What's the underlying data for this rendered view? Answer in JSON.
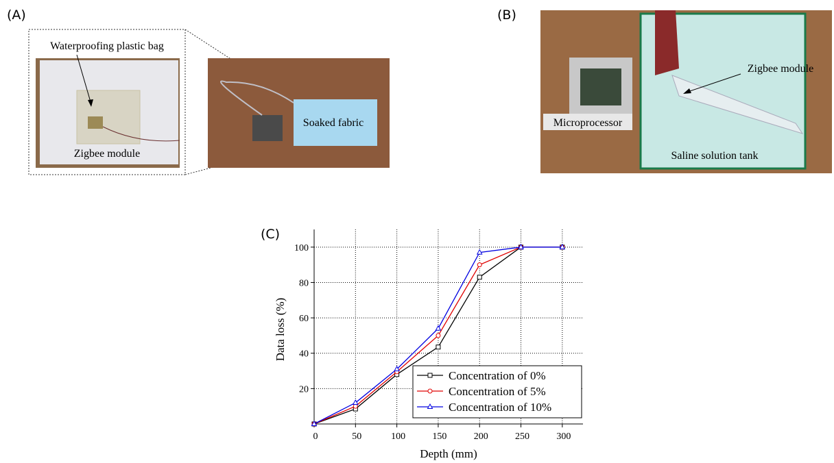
{
  "figure": {
    "panel_a": {
      "label": "(A)",
      "callouts": [
        "Waterproofing plastic bag",
        "Zigbee module",
        "Soaked fabric"
      ]
    },
    "panel_b": {
      "label": "(B)",
      "callouts": [
        "Zigbee module",
        "Microprocessor",
        "Saline solution tank"
      ]
    },
    "panel_c": {
      "label": "(C)"
    }
  },
  "chart_data": {
    "type": "line",
    "x_label": "Depth (mm)",
    "y_label": "Data loss (%)",
    "x": [
      0,
      50,
      100,
      150,
      200,
      250,
      300
    ],
    "series": [
      {
        "name": "Concentration of 0%",
        "color": "#000000",
        "marker": "square",
        "values": [
          0,
          8.5,
          28,
          43.5,
          83,
          100,
          100
        ]
      },
      {
        "name": "Concentration of 5%",
        "color": "#e00000",
        "marker": "circle",
        "values": [
          0,
          10,
          29.5,
          50,
          90,
          100,
          100
        ]
      },
      {
        "name": "Concentration of 10%",
        "color": "#0000e0",
        "marker": "triangle",
        "values": [
          0,
          12,
          31,
          54,
          97,
          100,
          100
        ]
      }
    ],
    "xlim": [
      0,
      325
    ],
    "ylim": [
      0,
      110
    ],
    "xticks": [
      0,
      50,
      100,
      150,
      200,
      250,
      300
    ],
    "yticks": [
      20,
      40,
      60,
      80,
      100
    ],
    "grid": true,
    "legend": "lower right"
  }
}
